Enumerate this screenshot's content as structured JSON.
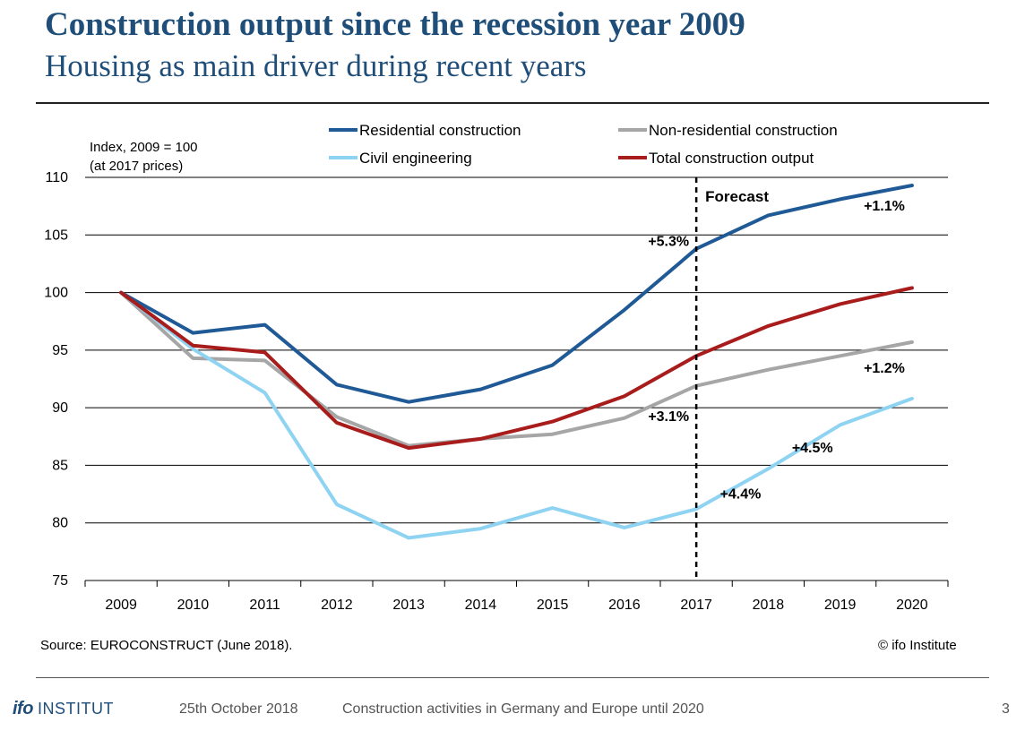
{
  "header": {
    "title": "Construction output since the recession year 2009",
    "subtitle": "Housing as main driver during recent years"
  },
  "chart_data": {
    "type": "line",
    "ylabel": "Index, 2009 = 100",
    "ylabel_note": "(at 2017 prices)",
    "x": [
      "2009",
      "2010",
      "2011",
      "2012",
      "2013",
      "2014",
      "2015",
      "2016",
      "2017",
      "2018",
      "2019",
      "2020"
    ],
    "ylim": [
      75,
      110
    ],
    "yticks": [
      75,
      80,
      85,
      90,
      95,
      100,
      105,
      110
    ],
    "grid": true,
    "legend_position": "top",
    "series": [
      {
        "name": "Residential construction",
        "color": "#1f5a96",
        "values": [
          100,
          96.5,
          97.2,
          92.0,
          90.5,
          91.6,
          93.7,
          98.5,
          103.8,
          106.7,
          108.1,
          109.3
        ]
      },
      {
        "name": "Non-residential construction",
        "color": "#a6a6a6",
        "values": [
          100,
          94.3,
          94.1,
          89.2,
          86.7,
          87.3,
          87.7,
          89.1,
          91.9,
          93.3,
          94.5,
          95.7
        ]
      },
      {
        "name": "Civil engineering",
        "color": "#8fd3f2",
        "values": [
          100,
          95.1,
          91.3,
          81.6,
          78.7,
          79.5,
          81.3,
          79.6,
          81.2,
          84.7,
          88.5,
          90.8
        ]
      },
      {
        "name": "Total construction output",
        "color": "#a81c1c",
        "values": [
          100,
          95.4,
          94.8,
          88.7,
          86.5,
          87.3,
          88.8,
          91.0,
          94.5,
          97.1,
          99.0,
          100.4
        ]
      }
    ],
    "forecast": {
      "label": "Forecast",
      "start_x": "2017"
    },
    "annotations": [
      {
        "text": "+5.3%",
        "x": "2017",
        "y": 104.5
      },
      {
        "text": "+1.1%",
        "x": "2020",
        "y": 107.6
      },
      {
        "text": "+1.2%",
        "x": "2020",
        "y": 93.5
      },
      {
        "text": "+3.1%",
        "x": "2017",
        "y": 89.3
      },
      {
        "text": "+4.5%",
        "x": "2019",
        "y": 86.6
      },
      {
        "text": "+4.4%",
        "x": "2018",
        "y": 82.6
      }
    ]
  },
  "footer": {
    "source": "Source: EUROCONSTRUCT (June 2018).",
    "copyright": "© ifo Institute",
    "logo_ifo": "ifo",
    "logo_institut": "INSTITUT",
    "date": "25th October 2018",
    "topic": "Construction activities in Germany and Europe until 2020",
    "page": "3"
  }
}
